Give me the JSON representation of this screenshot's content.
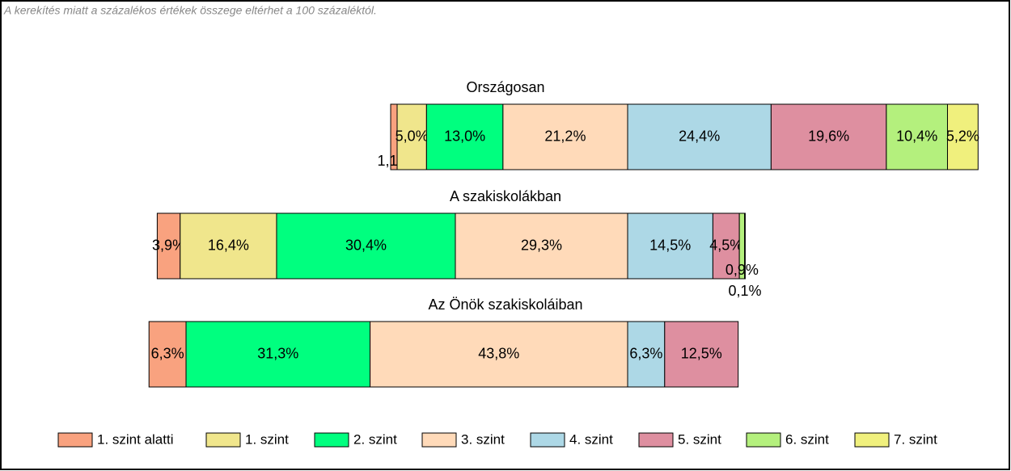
{
  "chart_data": {
    "type": "diverging-stacked-bar",
    "note": "A kerekítés miatt a  százalékos értékek összege eltérhet a 100 százaléktól.",
    "categories": [
      "Országosan",
      "A szakiskolákban",
      "Az Önök szakiskoláiban"
    ],
    "series": [
      {
        "name": "1. szint alatti",
        "color": "#f9a27f",
        "values": [
          1.1,
          3.9,
          6.3
        ],
        "value_labels": [
          "1,1%",
          "3,9%",
          "6,3%"
        ]
      },
      {
        "name": "1. szint",
        "color": "#f0e68c",
        "values": [
          5.0,
          16.4,
          null
        ],
        "value_labels": [
          "5,0%",
          "16,4%",
          null
        ]
      },
      {
        "name": "2. szint",
        "color": "#00ff7f",
        "values": [
          13.0,
          30.4,
          31.3
        ],
        "value_labels": [
          "13,0%",
          "30,4%",
          "31,3%"
        ]
      },
      {
        "name": "3. szint",
        "color": "#ffdab9",
        "values": [
          21.2,
          29.3,
          43.8
        ],
        "value_labels": [
          "21,2%",
          "29,3%",
          "43,8%"
        ]
      },
      {
        "name": "4. szint",
        "color": "#add8e6",
        "values": [
          24.4,
          14.5,
          6.3
        ],
        "value_labels": [
          "24,4%",
          "14,5%",
          "6,3%"
        ]
      },
      {
        "name": "5. szint",
        "color": "#de8fa0",
        "values": [
          19.6,
          4.5,
          12.5
        ],
        "value_labels": [
          "19,6%",
          "4,5%",
          "12,5%"
        ]
      },
      {
        "name": "6. szint",
        "color": "#b4f07d",
        "values": [
          10.4,
          0.9,
          null
        ],
        "value_labels": [
          "10,4%",
          "0,9%",
          null
        ]
      },
      {
        "name": "7. szint",
        "color": "#f0f07d",
        "values": [
          5.2,
          0.1,
          null
        ],
        "value_labels": [
          "5,2%",
          "0,1%",
          null
        ]
      }
    ]
  }
}
